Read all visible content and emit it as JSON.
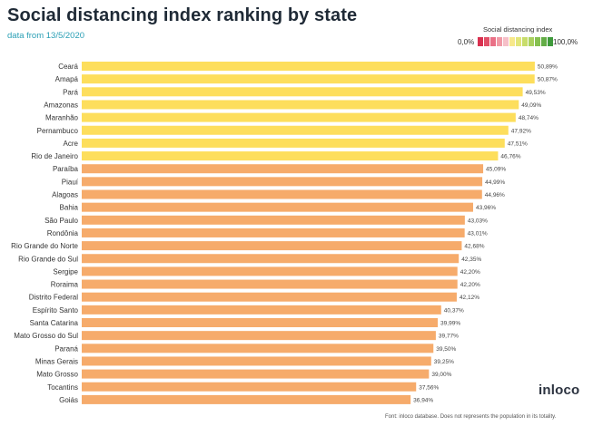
{
  "header": {
    "title": "Social distancing index ranking by state",
    "subtitle": "data from 13/5/2020"
  },
  "legend": {
    "title": "Social distancing index",
    "min_label": "0,0%",
    "max_label": "100,0%",
    "colors": [
      "#d9304f",
      "#e25068",
      "#ea7086",
      "#f19aa6",
      "#f6c0c8",
      "#f7e88a",
      "#e2e67a",
      "#c8dd6c",
      "#a9d05e",
      "#86c050",
      "#63ad46",
      "#3f9a3c"
    ]
  },
  "chart_data": {
    "type": "bar",
    "orientation": "horizontal",
    "title": "Social distancing index ranking by state",
    "subtitle": "data from 13/5/2020",
    "xlim": [
      0,
      51
    ],
    "grid": false,
    "colors": {
      "high": "#fdde5c",
      "mid": "#f6ab6b"
    },
    "categories": [
      "Ceará",
      "Amapá",
      "Pará",
      "Amazonas",
      "Maranhão",
      "Pernambuco",
      "Acre",
      "Rio de Janeiro",
      "Paraíba",
      "Piauí",
      "Alagoas",
      "Bahia",
      "São Paulo",
      "Rondônia",
      "Rio Grande do Norte",
      "Rio Grande do Sul",
      "Sergipe",
      "Roraima",
      "Distrito Federal",
      "Espírito Santo",
      "Santa Catarina",
      "Mato Grosso do Sul",
      "Paraná",
      "Minas Gerais",
      "Mato Grosso",
      "Tocantins",
      "Goiás"
    ],
    "values": [
      50.89,
      50.87,
      49.53,
      49.09,
      48.74,
      47.92,
      47.51,
      46.76,
      45.09,
      44.99,
      44.96,
      43.96,
      43.03,
      43.01,
      42.68,
      42.35,
      42.2,
      42.2,
      42.12,
      40.37,
      39.99,
      39.77,
      39.5,
      39.25,
      39.0,
      37.56,
      36.94
    ],
    "value_labels": [
      "50,89%",
      "50,87%",
      "49,53%",
      "49,09%",
      "48,74%",
      "47,92%",
      "47,51%",
      "46,76%",
      "45,09%",
      "44,99%",
      "44,96%",
      "43,96%",
      "43,03%",
      "43,01%",
      "42,68%",
      "42,35%",
      "42,20%",
      "42,20%",
      "42,12%",
      "40,37%",
      "39,99%",
      "39,77%",
      "39,50%",
      "39,25%",
      "39,00%",
      "37,56%",
      "36,94%"
    ]
  },
  "brand": {
    "logo": "inloco"
  },
  "footer": {
    "note": "Font: inloco database. Does not represents the population in its totality."
  }
}
